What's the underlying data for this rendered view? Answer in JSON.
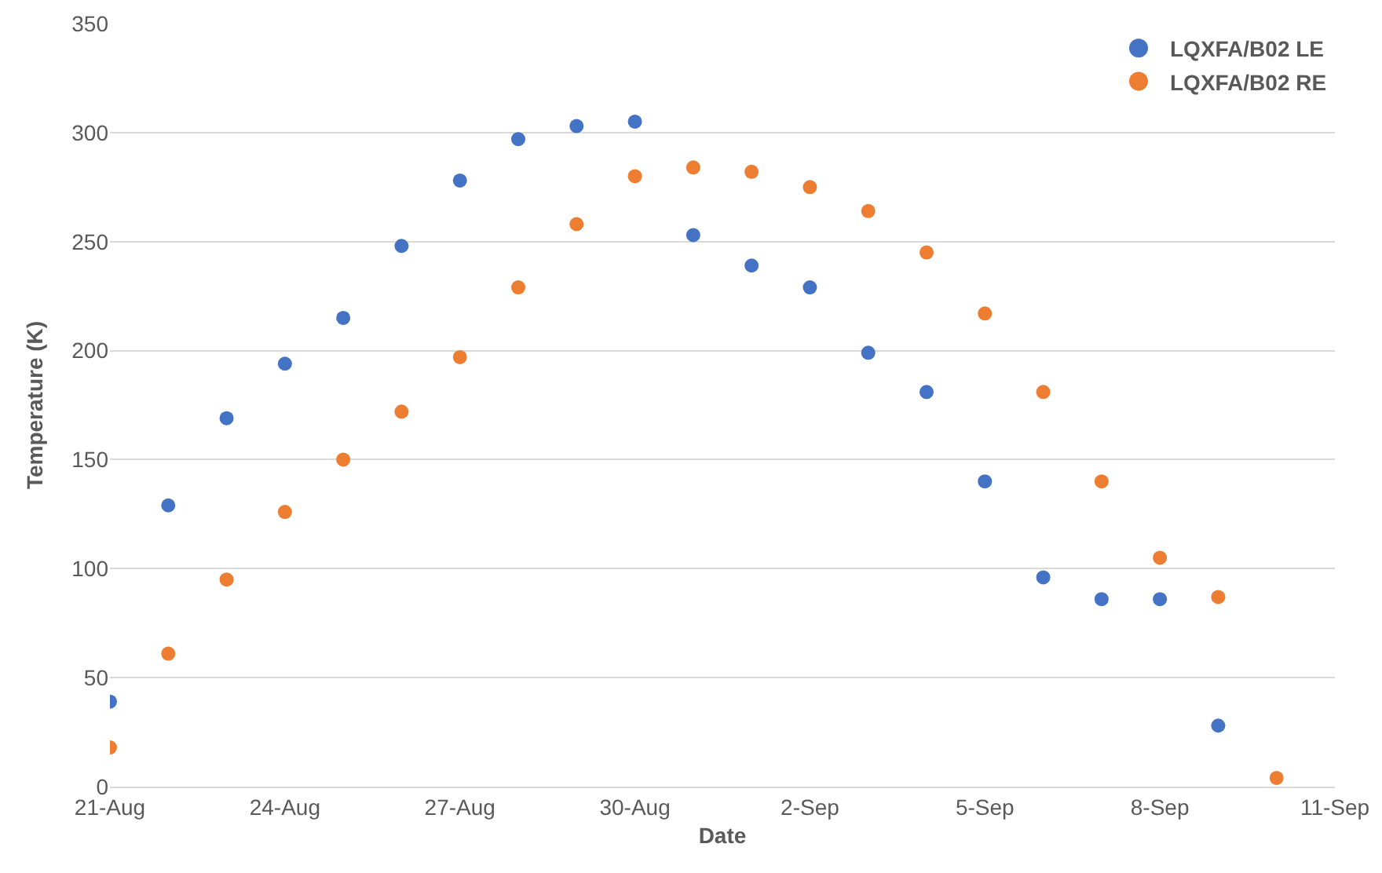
{
  "chart_data": {
    "type": "scatter",
    "xlabel": "Date",
    "ylabel": "Temperature (K)",
    "xlim": [
      "--08-21",
      "--09-11"
    ],
    "xticks": [
      {
        "value": "--08-21",
        "label": "21-Aug"
      },
      {
        "value": "--08-24",
        "label": "24-Aug"
      },
      {
        "value": "--08-27",
        "label": "27-Aug"
      },
      {
        "value": "--08-30",
        "label": "30-Aug"
      },
      {
        "value": "--09-02",
        "label": "2-Sep"
      },
      {
        "value": "--09-05",
        "label": "5-Sep"
      },
      {
        "value": "--09-08",
        "label": "8-Sep"
      },
      {
        "value": "--09-11",
        "label": "11-Sep"
      }
    ],
    "ylim": [
      0,
      350
    ],
    "yticks": [
      0,
      50,
      100,
      150,
      200,
      250,
      300,
      350
    ],
    "grid": "y",
    "legend": "top right",
    "marker": "circle",
    "series": [
      {
        "name": "LQXFA/B02 LE",
        "color": "#4472c4",
        "x": [
          "--08-21",
          "--08-22",
          "--08-23",
          "--08-24",
          "--08-25",
          "--08-26",
          "--08-27",
          "--08-28",
          "--08-29",
          "--08-30",
          "--08-31",
          "--09-01",
          "--09-02",
          "--09-03",
          "--09-04",
          "--09-05",
          "--09-06",
          "--09-07",
          "--09-08",
          "--09-09"
        ],
        "values": [
          39,
          129,
          169,
          194,
          215,
          248,
          278,
          297,
          303,
          305,
          253,
          239,
          229,
          199,
          181,
          140,
          96,
          86,
          86,
          28
        ]
      },
      {
        "name": "LQXFA/B02 RE",
        "color": "#ed7d31",
        "x": [
          "--08-21",
          "--08-22",
          "--08-23",
          "--08-24",
          "--08-25",
          "--08-26",
          "--08-27",
          "--08-28",
          "--08-29",
          "--08-30",
          "--08-31",
          "--09-01",
          "--09-02",
          "--09-03",
          "--09-04",
          "--09-05",
          "--09-06",
          "--09-07",
          "--09-08",
          "--09-09",
          "--09-10"
        ],
        "values": [
          18,
          61,
          95,
          126,
          150,
          172,
          197,
          229,
          258,
          280,
          284,
          282,
          275,
          264,
          245,
          217,
          181,
          140,
          105,
          87,
          4
        ]
      }
    ]
  }
}
